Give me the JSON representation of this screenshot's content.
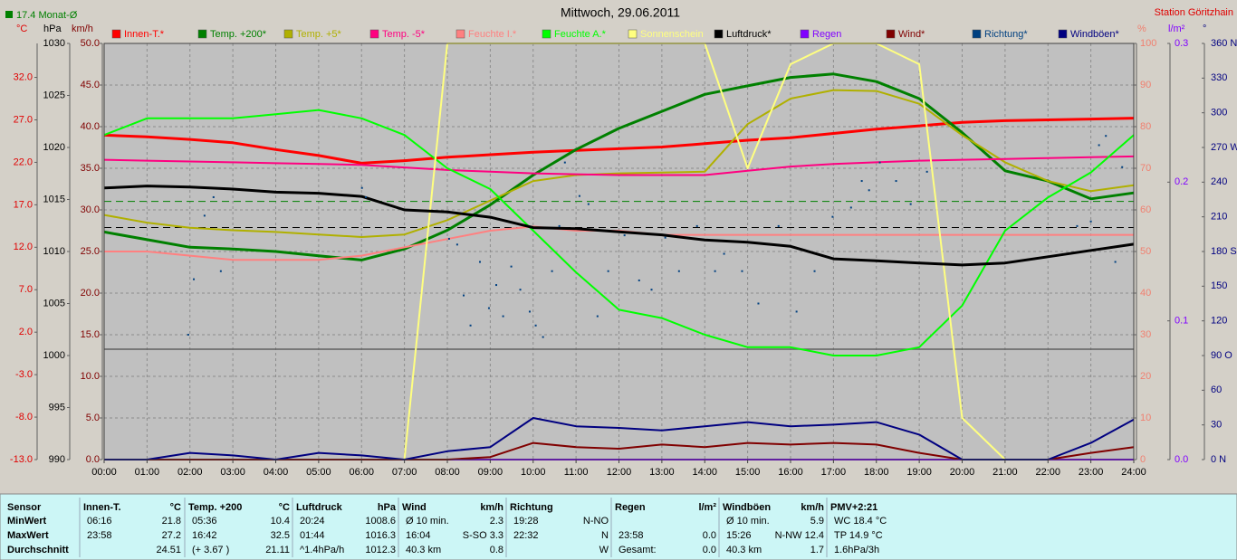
{
  "chart_data": {
    "type": "line",
    "title": "Mittwoch, 29.06.2011",
    "subtitle": "Station Göritzhain",
    "note": "17.4 Monat-Ø",
    "note_color": "#008000",
    "background": "#c0c0c0",
    "x": [
      0,
      1,
      2,
      3,
      4,
      5,
      6,
      7,
      8,
      9,
      10,
      11,
      12,
      13,
      14,
      15,
      16,
      17,
      18,
      19,
      20,
      21,
      22,
      23,
      24
    ],
    "xlim": [
      0,
      24
    ],
    "xticks": [
      {
        "value": 0,
        "label": "00:00"
      },
      {
        "value": 1,
        "label": "01:00"
      },
      {
        "value": 2,
        "label": "02:00"
      },
      {
        "value": 3,
        "label": "03:00"
      },
      {
        "value": 4,
        "label": "04:00"
      },
      {
        "value": 5,
        "label": "05:00"
      },
      {
        "value": 6,
        "label": "06:00"
      },
      {
        "value": 7,
        "label": "07:00"
      },
      {
        "value": 8,
        "label": "08:00"
      },
      {
        "value": 9,
        "label": "09:00"
      },
      {
        "value": 10,
        "label": "10:00"
      },
      {
        "value": 11,
        "label": "11:00"
      },
      {
        "value": 12,
        "label": "12:00"
      },
      {
        "value": 13,
        "label": "13:00"
      },
      {
        "value": 14,
        "label": "14:00"
      },
      {
        "value": 15,
        "label": "15:00"
      },
      {
        "value": 16,
        "label": "16:00"
      },
      {
        "value": 17,
        "label": "17:00"
      },
      {
        "value": 18,
        "label": "18:00"
      },
      {
        "value": 19,
        "label": "19:00"
      },
      {
        "value": 20,
        "label": "20:00"
      },
      {
        "value": 21,
        "label": "21:00"
      },
      {
        "value": 22,
        "label": "22:00"
      },
      {
        "value": 23,
        "label": "23:00"
      },
      {
        "value": 24,
        "label": "24:00"
      }
    ],
    "grid": true,
    "axes": [
      {
        "label": "°C",
        "side": "left",
        "color": "#e00000",
        "lim": [
          -13,
          36
        ],
        "ticks": [
          {
            "value": -13,
            "label": "-13.0"
          },
          {
            "value": -8,
            "label": "-8.0"
          },
          {
            "value": -3,
            "label": "-3.0"
          },
          {
            "value": 2,
            "label": "2.0"
          },
          {
            "value": 7,
            "label": "7.0"
          },
          {
            "value": 12,
            "label": "12.0"
          },
          {
            "value": 17,
            "label": "17.0"
          },
          {
            "value": 22,
            "label": "22.0"
          },
          {
            "value": 27,
            "label": "27.0"
          },
          {
            "value": 32,
            "label": "32.0"
          }
        ]
      },
      {
        "label": "hPa",
        "side": "left",
        "color": "#000000",
        "lim": [
          990,
          1030
        ],
        "ticks": [
          990,
          995,
          1000,
          1005,
          1010,
          1015,
          1020,
          1025,
          1030
        ]
      },
      {
        "label": "km/h",
        "side": "left",
        "color": "#800000",
        "lim": [
          0,
          50
        ],
        "ticks": [
          {
            "value": 0,
            "label": "0.0"
          },
          {
            "value": 5,
            "label": "5.0"
          },
          {
            "value": 10,
            "label": "10.0"
          },
          {
            "value": 15,
            "label": "15.0"
          },
          {
            "value": 20,
            "label": "20.0"
          },
          {
            "value": 25,
            "label": "25.0"
          },
          {
            "value": 30,
            "label": "30.0"
          },
          {
            "value": 35,
            "label": "35.0"
          },
          {
            "value": 40,
            "label": "40.0"
          },
          {
            "value": 45,
            "label": "45.0"
          },
          {
            "value": 50,
            "label": "50.0"
          }
        ]
      },
      {
        "label": "%",
        "side": "right",
        "color": "#f08070",
        "lim": [
          0,
          100
        ],
        "grid": true,
        "ticks": [
          0,
          10,
          20,
          30,
          40,
          50,
          60,
          70,
          80,
          90,
          100
        ]
      },
      {
        "label": "l/m²",
        "side": "right",
        "color": "#8000ff",
        "lim": [
          0,
          0.3
        ],
        "ticks": [
          {
            "value": 0,
            "label": "0.0"
          },
          {
            "value": 0.1,
            "label": "0.1"
          },
          {
            "value": 0.2,
            "label": "0.2"
          },
          {
            "value": 0.3,
            "label": "0.3"
          }
        ]
      },
      {
        "label": "°",
        "side": "right",
        "color": "#000080",
        "lim": [
          0,
          360
        ],
        "ticks": [
          {
            "value": 0,
            "label": "0 N"
          },
          30,
          60,
          {
            "value": 90,
            "label": "90 O"
          },
          120,
          150,
          {
            "value": 180,
            "label": "180 S"
          },
          210,
          240,
          {
            "value": 270,
            "label": "270 W"
          },
          300,
          330,
          {
            "value": 360,
            "label": "360 N"
          }
        ]
      }
    ],
    "reference_lines": [
      {
        "value": 17.4,
        "axis": "°C",
        "color": "#008000"
      },
      {
        "value": 1012.3,
        "axis": "hPa",
        "color": "#000000"
      }
    ],
    "series": [
      {
        "name": "Innen-T.*",
        "color": "#ff0000",
        "axis": "°C",
        "width": 3,
        "values": [
          25.2,
          25.0,
          24.7,
          24.3,
          23.5,
          22.8,
          21.9,
          22.2,
          22.6,
          22.9,
          23.2,
          23.4,
          23.6,
          23.8,
          24.2,
          24.6,
          24.9,
          25.4,
          25.9,
          26.3,
          26.7,
          26.9,
          27.0,
          27.1,
          27.2
        ]
      },
      {
        "name": "Temp. +200*",
        "color": "#008000",
        "axis": "°C",
        "width": 3,
        "values": [
          13.8,
          12.9,
          12.0,
          11.8,
          11.5,
          11.0,
          10.5,
          11.8,
          14.0,
          17.0,
          20.5,
          23.5,
          26.0,
          28.0,
          30.0,
          31.0,
          32.0,
          32.4,
          31.5,
          29.5,
          25.5,
          21.0,
          19.8,
          17.7,
          18.4
        ]
      },
      {
        "name": "Temp. +5*",
        "color": "#b0b000",
        "axis": "°C",
        "width": 2,
        "values": [
          15.8,
          14.9,
          14.3,
          14.0,
          13.8,
          13.5,
          13.2,
          13.5,
          15.2,
          17.5,
          19.8,
          20.5,
          20.7,
          20.8,
          20.9,
          26.5,
          29.5,
          30.5,
          30.4,
          28.9,
          25.2,
          22.0,
          19.8,
          18.6,
          19.3
        ]
      },
      {
        "name": "Temp. -5*",
        "color": "#ff0080",
        "axis": "°C",
        "width": 2,
        "values": [
          22.3,
          22.2,
          22.1,
          22.0,
          21.9,
          21.8,
          21.7,
          21.4,
          21.1,
          20.9,
          20.7,
          20.6,
          20.5,
          20.5,
          20.5,
          21.0,
          21.5,
          21.8,
          22.0,
          22.2,
          22.3,
          22.4,
          22.5,
          22.6,
          22.7
        ]
      },
      {
        "name": "Feuchte I.*",
        "color": "#ff8080",
        "axis": "%",
        "width": 2,
        "values": [
          50,
          50,
          49,
          48,
          48,
          48,
          49,
          51,
          53,
          55,
          56,
          55,
          55,
          54,
          54,
          54,
          54,
          54,
          54,
          54,
          54,
          54,
          54,
          54,
          54
        ]
      },
      {
        "name": "Feuchte A.*",
        "color": "#00ff00",
        "axis": "%",
        "width": 2,
        "values": [
          78,
          82,
          82,
          82,
          83,
          84,
          82,
          78,
          70,
          65,
          55,
          45,
          36,
          34,
          30,
          27,
          27,
          25,
          25,
          27,
          37,
          55,
          63,
          69,
          78
        ]
      },
      {
        "name": "Sonnenschein",
        "color": "#ffff80",
        "axis": "%",
        "width": 2,
        "values": [
          0,
          0,
          0,
          0,
          0,
          0,
          0,
          0,
          100,
          100,
          100,
          100,
          100,
          100,
          100,
          70,
          95,
          100,
          100,
          95,
          10,
          0,
          0,
          0,
          0
        ]
      },
      {
        "name": "Luftdruck*",
        "color": "#000000",
        "axis": "hPa",
        "width": 3,
        "values": [
          1016.1,
          1016.3,
          1016.2,
          1016.0,
          1015.7,
          1015.6,
          1015.3,
          1014.0,
          1013.8,
          1013.3,
          1012.3,
          1012.2,
          1011.9,
          1011.6,
          1011.1,
          1010.9,
          1010.5,
          1009.3,
          1009.1,
          1008.9,
          1008.7,
          1008.9,
          1009.5,
          1010.1,
          1010.7
        ]
      },
      {
        "name": "Regen",
        "color": "#8000ff",
        "axis": "l/m²",
        "width": 2,
        "values": [
          0,
          0,
          0,
          0,
          0,
          0,
          0,
          0,
          0,
          0,
          0,
          0,
          0,
          0,
          0,
          0,
          0,
          0,
          0,
          0,
          0,
          0,
          0,
          0,
          0
        ]
      },
      {
        "name": "Wind*",
        "color": "#800000",
        "axis": "km/h",
        "width": 2,
        "values": [
          0,
          0,
          0,
          0,
          0,
          0,
          0,
          0,
          0,
          0.3,
          2.0,
          1.5,
          1.3,
          1.8,
          1.5,
          2.0,
          1.8,
          2.0,
          1.8,
          0.8,
          0,
          0,
          0,
          0.8,
          1.5
        ]
      },
      {
        "name": "Richtung*",
        "color": "#004080",
        "axis": "°",
        "type": "scatter",
        "x": [
          1.96,
          2.09,
          2.34,
          2.55,
          2.72,
          6.01,
          6.1,
          8.04,
          8.23,
          8.38,
          8.54,
          8.76,
          8.97,
          9.14,
          9.3,
          9.49,
          9.7,
          9.92,
          10.06,
          10.23,
          10.44,
          10.61,
          10.74,
          11.08,
          11.29,
          11.5,
          11.75,
          12.13,
          12.47,
          12.76,
          13.08,
          13.4,
          13.82,
          14.24,
          14.45,
          14.87,
          15.25,
          15.72,
          16.14,
          16.56,
          16.98,
          17.41,
          17.66,
          17.83,
          18.08,
          18.46,
          18.8,
          19.18,
          22.68,
          23.0,
          23.19,
          23.35,
          23.57,
          23.73
        ],
        "values": [
          108,
          156,
          211,
          227,
          163,
          235,
          227,
          191,
          186,
          142,
          116,
          171,
          131,
          151,
          124,
          167,
          147,
          128,
          116,
          106,
          163,
          202,
          257,
          228,
          221,
          124,
          163,
          194,
          155,
          147,
          192,
          163,
          202,
          163,
          178,
          163,
          135,
          202,
          128,
          163,
          210,
          218,
          241,
          233,
          257,
          241,
          221,
          249,
          202,
          206,
          272,
          280,
          171,
          253
        ]
      },
      {
        "name": "Windböen*",
        "color": "#000080",
        "axis": "km/h",
        "width": 2,
        "values": [
          0,
          0,
          0.8,
          0.5,
          0,
          0.8,
          0.5,
          0,
          1.0,
          1.5,
          5.0,
          4.0,
          3.8,
          3.5,
          4.0,
          4.5,
          4.0,
          4.2,
          4.5,
          3.0,
          0,
          0,
          0,
          2.0,
          4.8
        ]
      }
    ]
  },
  "table": {
    "row_labels": [
      "Sensor",
      "MinWert",
      "MaxWert",
      "Durchschnitt"
    ],
    "blocks": [
      {
        "sensor": "Innen-T.",
        "unit": "°C",
        "rows": [
          {
            "left": "06:16",
            "right": "21.8"
          },
          {
            "left": "23:58",
            "right": "27.2"
          },
          {
            "right": "24.51"
          }
        ]
      },
      {
        "sensor": "Temp. +200",
        "unit": "°C",
        "rows": [
          {
            "left": "05:36",
            "right": "10.4"
          },
          {
            "left": "16:42",
            "right": "32.5"
          },
          {
            "left": "(+ 3.67 )",
            "right": "21.11"
          }
        ]
      },
      {
        "sensor": "Luftdruck",
        "unit": "hPa",
        "rows": [
          {
            "left": "20:24",
            "right": "1008.6"
          },
          {
            "left": "01:44",
            "right": "1016.3"
          },
          {
            "left": "^1.4hPa/h",
            "right": "1012.3"
          }
        ]
      },
      {
        "sensor": "Wind",
        "unit": "km/h",
        "rows": [
          {
            "left": "Ø 10 min.",
            "right": "2.3"
          },
          {
            "left": "16:04",
            "right": "S-SO 3.3"
          },
          {
            "left": "40.3 km",
            "right": "0.8"
          }
        ]
      },
      {
        "sensor": "Richtung",
        "rows": [
          {
            "left": "19:28",
            "right": "N-NO"
          },
          {
            "left": "22:32",
            "right": "N"
          },
          {
            "right": "W"
          }
        ]
      },
      {
        "sensor": "Regen",
        "unit": "l/m²",
        "rows": [
          {},
          {
            "left": "23:58",
            "right": "0.0"
          },
          {
            "left": "Gesamt:",
            "right": "0.0"
          }
        ]
      },
      {
        "sensor": "Windböen",
        "unit": "km/h",
        "rows": [
          {
            "left": "Ø 10 min.",
            "right": "5.9"
          },
          {
            "left": "15:26",
            "right": "N-NW 12.4"
          },
          {
            "left": "40.3 km",
            "right": "1.7"
          }
        ]
      },
      {
        "sensor": "PMV+2:21",
        "rows": [
          {
            "left": "WC 18.4 °C"
          },
          {
            "left": "TP 14.9 °C"
          },
          {
            "left": "1.6hPa/3h"
          }
        ]
      }
    ]
  }
}
